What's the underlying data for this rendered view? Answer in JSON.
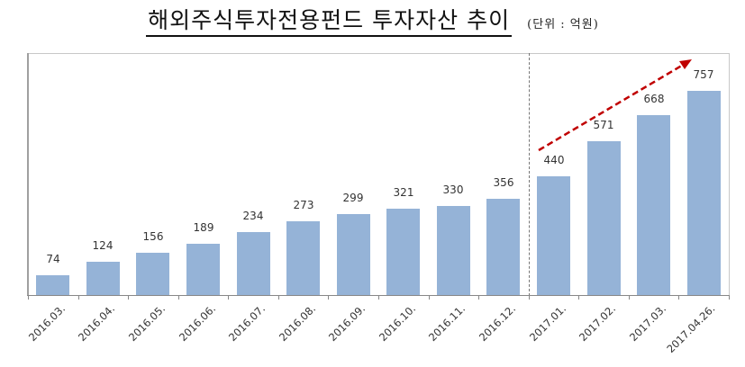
{
  "header": {
    "title": "해외주식투자전용펀드 투자자산 추이",
    "unit": "(단위 : 억원)"
  },
  "colors": {
    "bar": "#95b3d7",
    "trend_arrow": "#c00000",
    "divider": "#777777"
  },
  "chart_data": {
    "type": "bar",
    "title": "해외주식투자전용펀드 투자자산 추이",
    "subtitle": "(단위 : 억원)",
    "xlabel": "",
    "ylabel": "",
    "unit": "억원",
    "categories": [
      "2016.03.",
      "2016.04.",
      "2016.05.",
      "2016.06.",
      "2016.07.",
      "2016.08.",
      "2016.09.",
      "2016.10.",
      "2016.11.",
      "2016.12.",
      "2017.01.",
      "2017.02.",
      "2017.03.",
      "2017.04.26."
    ],
    "values": [
      74,
      124,
      156,
      189,
      234,
      273,
      299,
      321,
      330,
      356,
      440,
      571,
      668,
      757
    ],
    "value_labels": [
      "74",
      "124",
      "156",
      "189",
      "234",
      "273",
      "299",
      "321",
      "330",
      "356",
      "440",
      "571",
      "668",
      "757"
    ],
    "ylim": [
      0,
      900
    ],
    "grid": false,
    "legend": null,
    "annotations": [
      {
        "type": "vertical-dashed-line",
        "between": [
          "2016.12.",
          "2017.01."
        ]
      },
      {
        "type": "red-dashed-trend-arrow",
        "from": "2017.01.",
        "to": "2017.04.26.",
        "direction": "up"
      }
    ]
  }
}
